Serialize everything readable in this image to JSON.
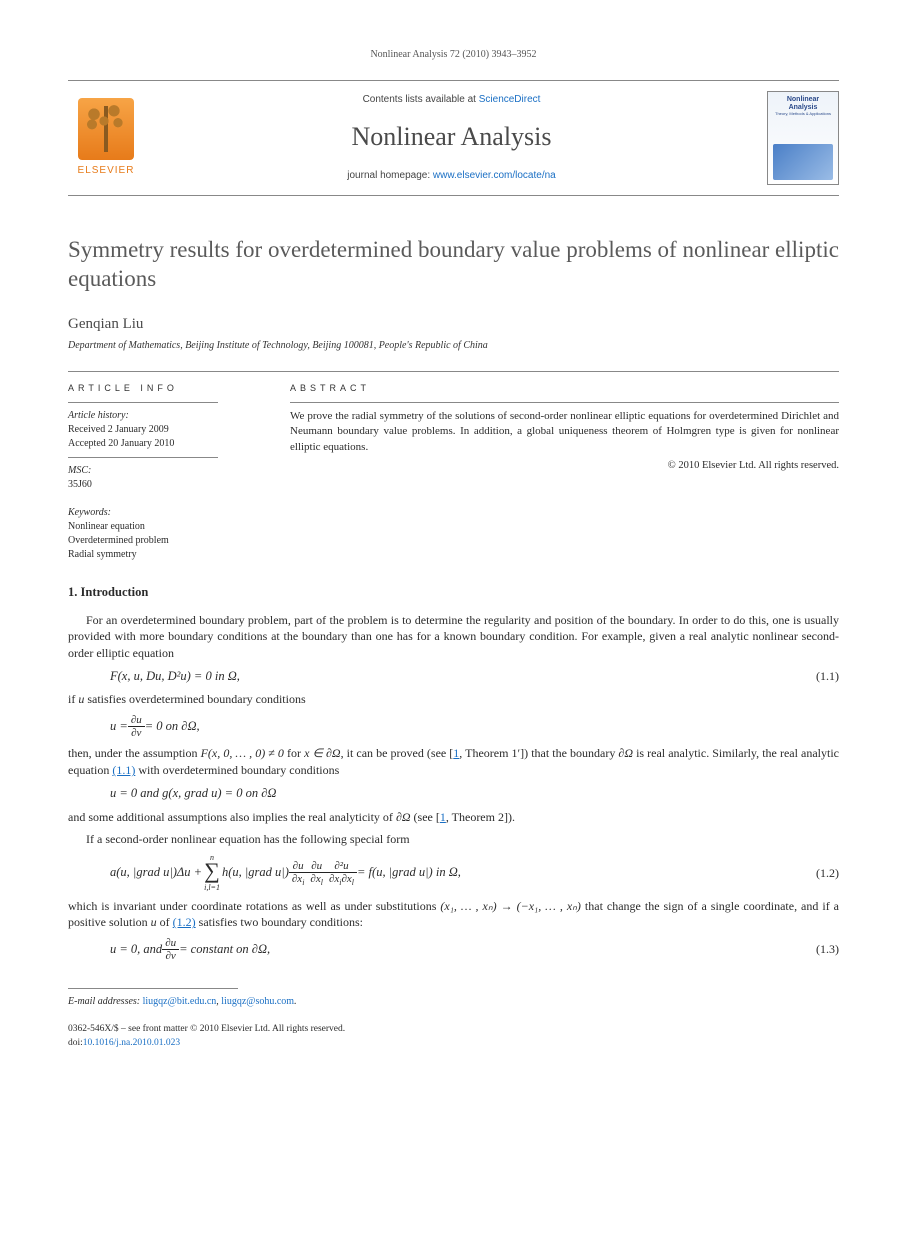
{
  "running_head": "Nonlinear Analysis 72 (2010) 3943–3952",
  "masthead": {
    "publisher_word": "ELSEVIER",
    "contents_prefix": "Contents lists available at ",
    "contents_link_text": "ScienceDirect",
    "journal_name": "Nonlinear Analysis",
    "homepage_prefix": "journal homepage: ",
    "homepage_link_text": "www.elsevier.com/locate/na",
    "cover_title": "Nonlinear Analysis",
    "cover_sub": "Theory, Methods & Applications"
  },
  "article": {
    "title": "Symmetry results for overdetermined boundary value problems of nonlinear elliptic equations",
    "author": "Genqian Liu",
    "affiliation": "Department of Mathematics, Beijing Institute of Technology, Beijing 100081, People's Republic of China"
  },
  "info": {
    "head": "article info",
    "history_head": "Article history:",
    "received": "Received 2 January 2009",
    "accepted": "Accepted 20 January 2010",
    "msc_head": "MSC:",
    "msc_code": "35J60",
    "keywords_head": "Keywords:",
    "kw1": "Nonlinear equation",
    "kw2": "Overdetermined problem",
    "kw3": "Radial symmetry"
  },
  "abstract": {
    "head": "abstract",
    "text": "We prove the radial symmetry of the solutions of second-order nonlinear elliptic equations for overdetermined Dirichlet and Neumann boundary value problems. In addition, a global uniqueness theorem of Holmgren type is given for nonlinear elliptic equations.",
    "copyright": "© 2010 Elsevier Ltd. All rights reserved."
  },
  "section1": {
    "head": "1.  Introduction",
    "p1": "For an overdetermined boundary problem, part of the problem is to determine the regularity and position of the boundary. In order to do this, one is usually provided with more boundary conditions at the boundary than one has for a known boundary condition. For example, given a real analytic nonlinear second-order elliptic equation",
    "eq11": "F(x, u, Du, D²u) = 0   in Ω,",
    "eq11_num": "(1.1)",
    "p2a": "if ",
    "p2b": " satisfies overdetermined boundary conditions",
    "eq_bc1_lhs": "u = ",
    "eq_bc1_rhs": " = 0   on ∂Ω,",
    "p3a": "then, under the assumption ",
    "p3b": "F(x, 0, … , 0) ≠ 0",
    "p3c": " for ",
    "p3d": "x ∈ ∂Ω",
    "p3e": ", it can be proved  (see [",
    "p3f": ", Theorem 1′])  that the boundary ",
    "p3g": "∂Ω",
    "p3h": " is real analytic. Similarly, the real analytic equation ",
    "p3i": " with overdetermined boundary conditions",
    "eq_bc2": "u = 0   and   g(x, grad u) = 0   on ∂Ω",
    "p4a": "and some additional assumptions also implies the real analyticity of ",
    "p4b": "∂Ω",
    "p4c": " (see [",
    "p4d": ", Theorem 2]).",
    "p5": "If a second-order nonlinear equation has the following special form",
    "eq12_a": "a(u, |grad u|)Δu + ",
    "eq12_b": " h(u, |grad u|) ",
    "eq12_c": " = f(u, |grad u|)   in Ω,",
    "eq12_num": "(1.2)",
    "p6a": "which is invariant under coordinate rotations as well as under substitutions ",
    "p6b": "(x₁, … , xₙ) → (−x₁, … , xₙ)",
    "p6c": " that change the sign of a single coordinate, and if a positive solution ",
    "p6d": " of ",
    "p6e": " satisfies two boundary conditions:",
    "eq13_a": "u = 0,    and    ",
    "eq13_b": " = constant   on ∂Ω,",
    "eq13_num": "(1.3)",
    "ref_1": "1",
    "ref_11": "(1.1)",
    "ref_12": "(1.2)",
    "u": "u"
  },
  "footnote": {
    "label": "E-mail addresses: ",
    "email1": "liugqz@bit.edu.cn",
    "sep": ", ",
    "email2": "liugqz@sohu.com",
    "tail": "."
  },
  "bottom": {
    "l1": "0362-546X/$ – see front matter © 2010 Elsevier Ltd. All rights reserved.",
    "l2a": "doi:",
    "l2b": "10.1016/j.na.2010.01.023"
  },
  "colors": {
    "link": "#1a6fc4",
    "elsevier": "#e77b1a",
    "text": "#2b2b2b",
    "rule": "#888888",
    "title_gray": "#5a5a5a"
  },
  "typography": {
    "body_pt": 12,
    "title_pt": 23,
    "journal_pt": 26,
    "small_pt": 10
  }
}
